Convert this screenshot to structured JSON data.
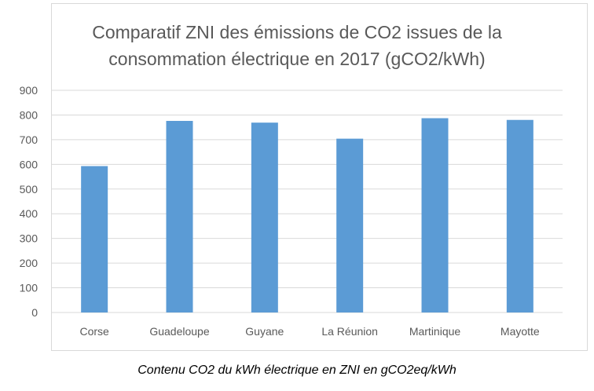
{
  "chart_data": {
    "type": "bar",
    "title_line1": "Comparatif ZNI des émissions de CO2 issues de la",
    "title_line2": "consommation électrique en 2017 (gCO2/kWh)",
    "xlabel": "",
    "ylabel": "",
    "categories": [
      "Corse",
      "Guadeloupe",
      "Guyane",
      "La Réunion",
      "Martinique",
      "Mayotte"
    ],
    "values": [
      593,
      776,
      769,
      704,
      787,
      780
    ],
    "ylim": [
      0,
      900
    ],
    "yticks": [
      0,
      100,
      200,
      300,
      400,
      500,
      600,
      700,
      800,
      900
    ],
    "grid": true,
    "legend": "none",
    "bar_color": "#5b9bd5",
    "grid_color": "#d9d9d9",
    "tick_label_color": "#595959"
  },
  "caption": "Contenu CO2 du kWh électrique en ZNI en gCO2eq/kWh"
}
